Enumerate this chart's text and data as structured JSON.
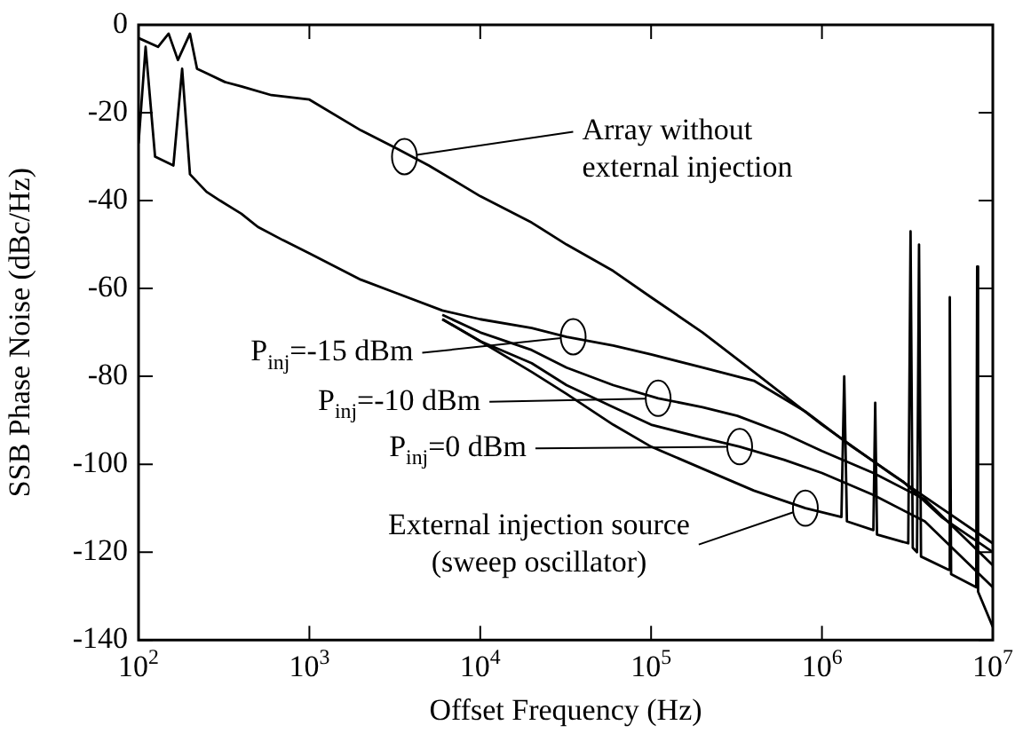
{
  "chart_data": {
    "type": "line",
    "xlabel": "Offset Frequency (Hz)",
    "ylabel": "SSB Phase Noise (dBc/Hz)",
    "log": "x",
    "grid": false,
    "legend": false,
    "marker": "none",
    "line_style": "solid",
    "xlim": [
      100,
      10000000
    ],
    "ylim": [
      -140,
      0
    ],
    "xticks": [
      {
        "value": 100,
        "label": "10$^{2}$"
      },
      {
        "value": 1000,
        "label": "10$^{3}$"
      },
      {
        "value": 10000,
        "label": "10$^{4}$"
      },
      {
        "value": 100000,
        "label": "10$^{5}$"
      },
      {
        "value": 1000000,
        "label": "10$^{6}$"
      },
      {
        "value": 10000000,
        "label": "10$^{7}$"
      }
    ],
    "yticks": [
      -140,
      -120,
      -100,
      -80,
      -60,
      -40,
      -20,
      0
    ],
    "series": [
      {
        "color": "#000000",
        "x": [
          100,
          130,
          150,
          170,
          200,
          220,
          250,
          320,
          400,
          600,
          1000,
          2000,
          3200,
          5000,
          10000,
          20000,
          32000,
          60000,
          100000,
          200000,
          400000,
          1000000,
          2500000,
          5000000,
          10000000
        ],
        "values": [
          -3,
          -5,
          -2,
          -8,
          -2,
          -10,
          -11,
          -13,
          -14,
          -16,
          -17,
          -24,
          -28,
          -32,
          -39,
          -45,
          -50,
          -56,
          -62,
          -70,
          -79,
          -91,
          -102,
          -110,
          -118
        ]
      },
      {
        "color": "#000000",
        "x": [
          100,
          110,
          125,
          160,
          180,
          200,
          250,
          300,
          400,
          500,
          700,
          1000,
          2000,
          3200,
          6000,
          10000,
          20000,
          32000,
          60000,
          100000,
          200000,
          400000,
          800000,
          1500000,
          3000000,
          5000000,
          10000000
        ],
        "values": [
          -27,
          -5,
          -30,
          -32,
          -10,
          -34,
          -38,
          -40,
          -43,
          -46,
          -49,
          -52,
          -58,
          -61,
          -65,
          -67,
          -69,
          -71,
          -73,
          -75,
          -78,
          -81,
          -88,
          -96,
          -104,
          -112,
          -120
        ]
      },
      {
        "color": "#000000",
        "x": [
          6000,
          10000,
          20000,
          32000,
          60000,
          110000,
          200000,
          320000,
          600000,
          1000000,
          2000000,
          4000000,
          10000000
        ],
        "values": [
          -66,
          -70,
          -74,
          -78,
          -82,
          -85,
          -87,
          -89,
          -93,
          -97,
          -102,
          -108,
          -123
        ]
      },
      {
        "color": "#000000",
        "x": [
          6000,
          10000,
          20000,
          32000,
          60000,
          100000,
          200000,
          330000,
          600000,
          1000000,
          2000000,
          4000000,
          10000000
        ],
        "values": [
          -67,
          -72,
          -77,
          -82,
          -87,
          -91,
          -94,
          -96,
          -99,
          -102,
          -107,
          -113,
          -128
        ]
      },
      {
        "color": "#000000",
        "x": [
          6000,
          10000,
          20000,
          32000,
          60000,
          100000,
          200000,
          400000,
          800000,
          1300000,
          1350000,
          1400000,
          2000000,
          2050000,
          2100000,
          3200000,
          3300000,
          3400000,
          3600000,
          3700000,
          3800000,
          5500000,
          5600000,
          5700000,
          8000000,
          8100000,
          8200000,
          10000000
        ],
        "values": [
          -67,
          -72,
          -79,
          -84,
          -91,
          -96,
          -101,
          -106,
          -110,
          -112,
          -80,
          -113,
          -115,
          -86,
          -116,
          -118,
          -47,
          -119,
          -120,
          -50,
          -121,
          -124,
          -62,
          -125,
          -128,
          -55,
          -129,
          -137
        ]
      }
    ],
    "annotations": [
      {
        "text": "Array without\nexternal injection",
        "x": 3600,
        "y": -30
      },
      {
        "text": "P$_{inj}$=-15 dBm",
        "x": 35000,
        "y": -71
      },
      {
        "text": "P$_{inj}$=-10 dBm",
        "x": 110000,
        "y": -85
      },
      {
        "text": "P$_{inj}$=0 dBm",
        "x": 330000,
        "y": -96
      },
      {
        "text": "External injection source\n(sweep oscillator)",
        "x": 800000,
        "y": -110
      }
    ]
  }
}
